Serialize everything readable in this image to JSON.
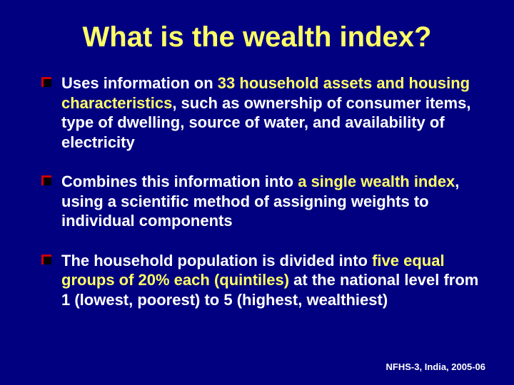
{
  "slide": {
    "background_color": "#000080",
    "text_color": "#ffffff",
    "highlight_color": "#ffff66",
    "bullet_color_outer": "#cc0000",
    "bullet_color_inner": "#000000",
    "title": {
      "text": "What is the wealth index?",
      "fontsize": 40,
      "color": "#ffff66",
      "weight": "bold"
    },
    "bullets": [
      {
        "pre": "Uses information on ",
        "emph": "33 household assets and housing characteristics",
        "post": ", such as ownership of consumer items, type of dwelling, source of water, and availability of electricity"
      },
      {
        "pre": "Combines this information into ",
        "emph": "a single wealth index",
        "post": ", using a scientific method of assigning weights to individual components"
      },
      {
        "pre": "The household population is divided into ",
        "emph": "five equal groups of 20% each (quintiles)",
        "post": " at the national level from 1 (lowest, poorest) to 5 (highest, wealthiest)"
      }
    ],
    "body_fontsize": 22,
    "footer": {
      "text": "NFHS-3, India, 2005-06",
      "fontsize": 13
    }
  }
}
